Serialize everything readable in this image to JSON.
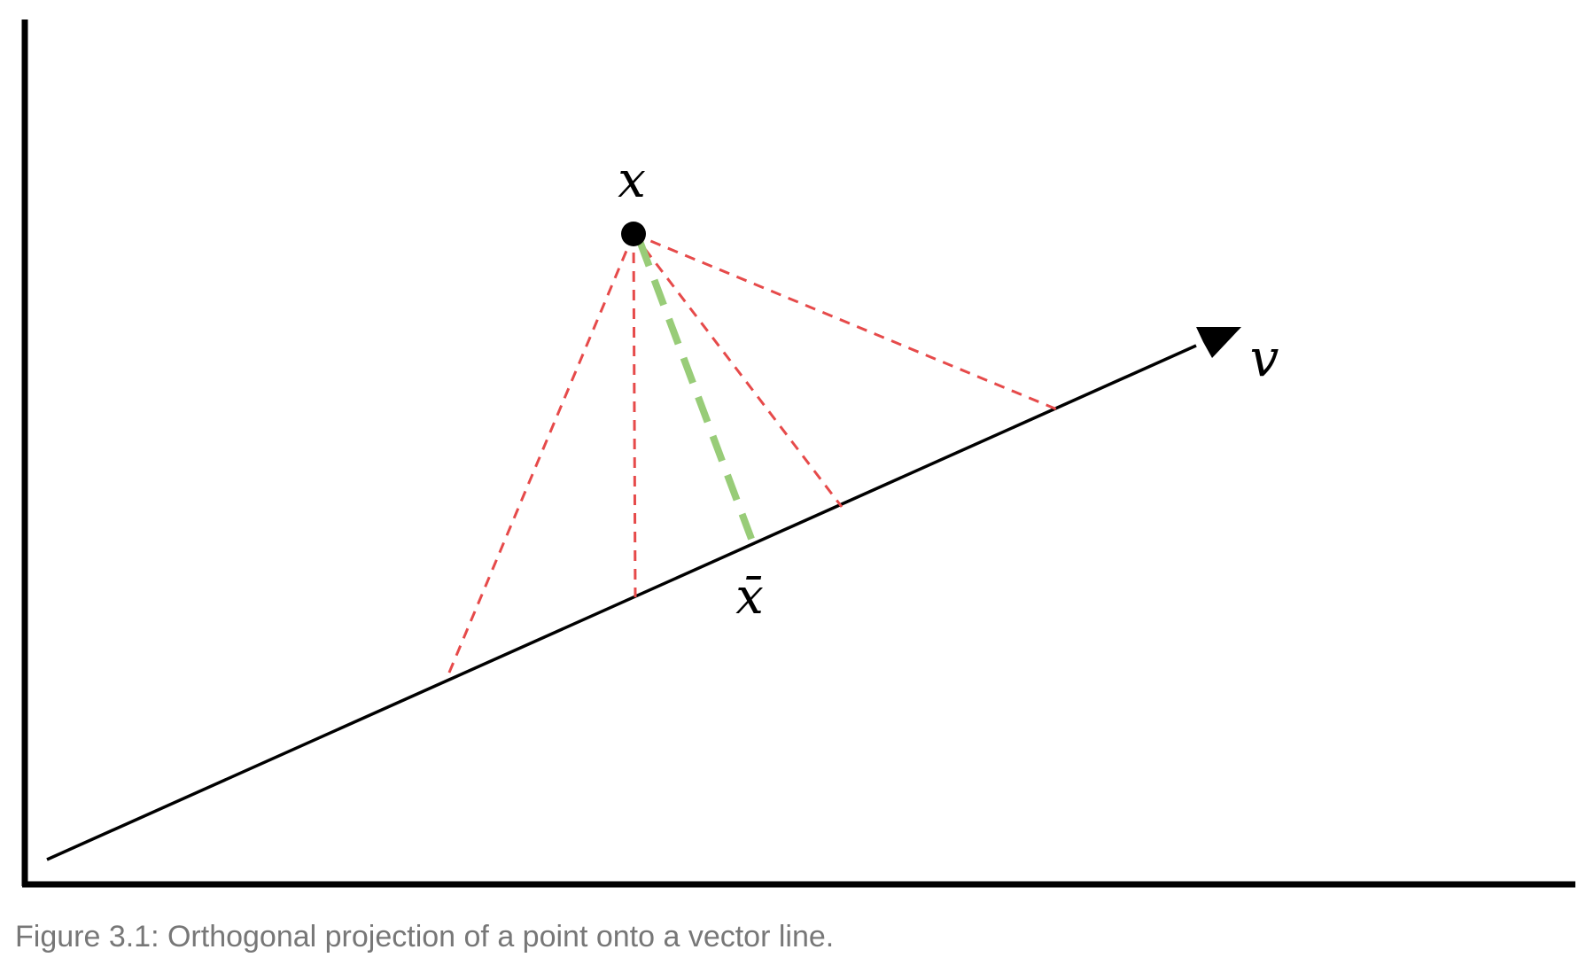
{
  "diagram": {
    "point_label": "x",
    "projection_label": "x̄",
    "vector_label": "v",
    "colors": {
      "axes": "#000000",
      "vector_line": "#000000",
      "point": "#000000",
      "candidate_lines": "#e64a4a",
      "projection_line": "#98cc78"
    }
  },
  "caption": "Figure 3.1: Orthogonal projection of a point onto a vector line."
}
